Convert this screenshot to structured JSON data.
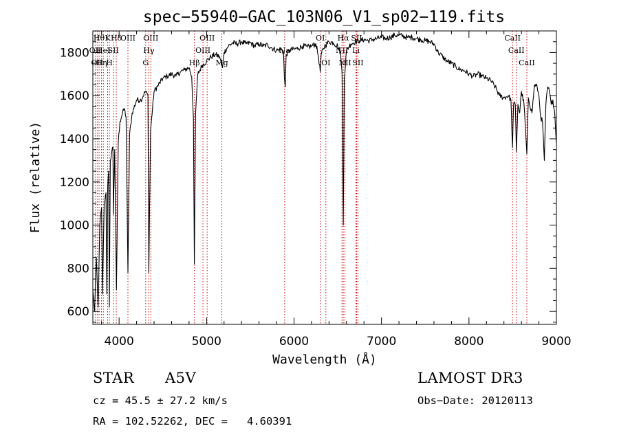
{
  "chart_data": {
    "type": "line",
    "title": "spec−55940−GAC_103N06_V1_sp02−119.fits",
    "xlabel": "Wavelength (Å)",
    "ylabel": "Flux (relative)",
    "xlim": [
      3700,
      9000
    ],
    "ylim": [
      540,
      1900
    ],
    "xticks": [
      4000,
      5000,
      6000,
      7000,
      8000,
      9000
    ],
    "yticks": [
      600,
      800,
      1000,
      1200,
      1400,
      1600,
      1800
    ],
    "line_color": "#cc0000",
    "trace_color": "#000000",
    "series": [
      {
        "name": "flux",
        "points": [
          [
            3700,
            700
          ],
          [
            3720,
            600
          ],
          [
            3740,
            850
          ],
          [
            3760,
            620
          ],
          [
            3780,
            1000
          ],
          [
            3800,
            1080
          ],
          [
            3810,
            680
          ],
          [
            3830,
            1100
          ],
          [
            3850,
            1150
          ],
          [
            3860,
            680
          ],
          [
            3870,
            1180
          ],
          [
            3880,
            1250
          ],
          [
            3889,
            620
          ],
          [
            3900,
            1300
          ],
          [
            3920,
            1350
          ],
          [
            3930,
            1360
          ],
          [
            3934,
            1050
          ],
          [
            3950,
            1350
          ],
          [
            3970,
            700
          ],
          [
            3990,
            1380
          ],
          [
            4010,
            1480
          ],
          [
            4040,
            1520
          ],
          [
            4060,
            1540
          ],
          [
            4080,
            1500
          ],
          [
            4101,
            780
          ],
          [
            4120,
            1420
          ],
          [
            4150,
            1520
          ],
          [
            4200,
            1580
          ],
          [
            4250,
            1580
          ],
          [
            4300,
            1620
          ],
          [
            4330,
            1600
          ],
          [
            4340,
            780
          ],
          [
            4360,
            1440
          ],
          [
            4400,
            1620
          ],
          [
            4450,
            1650
          ],
          [
            4500,
            1680
          ],
          [
            4550,
            1690
          ],
          [
            4600,
            1700
          ],
          [
            4650,
            1690
          ],
          [
            4700,
            1710
          ],
          [
            4750,
            1720
          ],
          [
            4800,
            1730
          ],
          [
            4830,
            1690
          ],
          [
            4850,
            1500
          ],
          [
            4861,
            820
          ],
          [
            4875,
            1520
          ],
          [
            4900,
            1700
          ],
          [
            4950,
            1740
          ],
          [
            5000,
            1760
          ],
          [
            5050,
            1780
          ],
          [
            5100,
            1790
          ],
          [
            5150,
            1780
          ],
          [
            5172,
            1740
          ],
          [
            5183,
            1730
          ],
          [
            5200,
            1800
          ],
          [
            5250,
            1830
          ],
          [
            5300,
            1845
          ],
          [
            5350,
            1840
          ],
          [
            5400,
            1850
          ],
          [
            5450,
            1840
          ],
          [
            5500,
            1845
          ],
          [
            5550,
            1830
          ],
          [
            5600,
            1840
          ],
          [
            5650,
            1830
          ],
          [
            5700,
            1835
          ],
          [
            5750,
            1820
          ],
          [
            5800,
            1810
          ],
          [
            5850,
            1815
          ],
          [
            5880,
            1800
          ],
          [
            5890,
            1680
          ],
          [
            5900,
            1640
          ],
          [
            5910,
            1790
          ],
          [
            5950,
            1810
          ],
          [
            6000,
            1815
          ],
          [
            6050,
            1820
          ],
          [
            6100,
            1830
          ],
          [
            6150,
            1825
          ],
          [
            6200,
            1830
          ],
          [
            6250,
            1840
          ],
          [
            6280,
            1780
          ],
          [
            6300,
            1710
          ],
          [
            6310,
            1790
          ],
          [
            6350,
            1830
          ],
          [
            6400,
            1850
          ],
          [
            6450,
            1845
          ],
          [
            6500,
            1830
          ],
          [
            6530,
            1800
          ],
          [
            6550,
            1700
          ],
          [
            6563,
            1000
          ],
          [
            6575,
            1680
          ],
          [
            6600,
            1810
          ],
          [
            6650,
            1840
          ],
          [
            6700,
            1850
          ],
          [
            6750,
            1855
          ],
          [
            6800,
            1860
          ],
          [
            6850,
            1855
          ],
          [
            6900,
            1860
          ],
          [
            6950,
            1865
          ],
          [
            7000,
            1870
          ],
          [
            7050,
            1865
          ],
          [
            7100,
            1870
          ],
          [
            7150,
            1880
          ],
          [
            7200,
            1880
          ],
          [
            7250,
            1875
          ],
          [
            7300,
            1870
          ],
          [
            7350,
            1870
          ],
          [
            7400,
            1865
          ],
          [
            7450,
            1860
          ],
          [
            7500,
            1855
          ],
          [
            7550,
            1850
          ],
          [
            7600,
            1840
          ],
          [
            7650,
            1800
          ],
          [
            7700,
            1780
          ],
          [
            7750,
            1760
          ],
          [
            7800,
            1750
          ],
          [
            7850,
            1735
          ],
          [
            7900,
            1720
          ],
          [
            7950,
            1715
          ],
          [
            8000,
            1700
          ],
          [
            8050,
            1690
          ],
          [
            8100,
            1700
          ],
          [
            8150,
            1690
          ],
          [
            8200,
            1680
          ],
          [
            8250,
            1670
          ],
          [
            8300,
            1640
          ],
          [
            8350,
            1600
          ],
          [
            8400,
            1590
          ],
          [
            8450,
            1600
          ],
          [
            8480,
            1580
          ],
          [
            8498,
            1360
          ],
          [
            8510,
            1560
          ],
          [
            8530,
            1560
          ],
          [
            8542,
            1340
          ],
          [
            8560,
            1560
          ],
          [
            8580,
            1520
          ],
          [
            8600,
            1620
          ],
          [
            8630,
            1560
          ],
          [
            8662,
            1330
          ],
          [
            8680,
            1590
          ],
          [
            8720,
            1520
          ],
          [
            8750,
            1650
          ],
          [
            8780,
            1640
          ],
          [
            8800,
            1600
          ],
          [
            8820,
            1500
          ],
          [
            8840,
            1480
          ],
          [
            8862,
            1300
          ],
          [
            8880,
            1560
          ],
          [
            8900,
            1640
          ],
          [
            8920,
            1620
          ],
          [
            8940,
            1560
          ],
          [
            8960,
            1580
          ],
          [
            8980,
            1520
          ],
          [
            9000,
            1380
          ]
        ]
      }
    ],
    "spectral_lines": [
      {
        "x": 3727,
        "row": 1,
        "label": "OII"
      },
      {
        "x": 3750,
        "row": 2,
        "label": "OII"
      },
      {
        "x": 3771,
        "row": 0,
        "label": "Hθ"
      },
      {
        "x": 3798,
        "row": 2,
        "label": "Hη"
      },
      {
        "x": 3820,
        "row": 1,
        "label": "HeI"
      },
      {
        "x": 3869,
        "row": 0,
        "label": "K"
      },
      {
        "x": 3889,
        "row": 2,
        "label": "H"
      },
      {
        "x": 3934,
        "row": 1,
        "label": "SII"
      },
      {
        "x": 3968,
        "row": 0,
        "label": "Hδ"
      },
      {
        "x": 4101,
        "row": 0,
        "label": "OIII"
      },
      {
        "x": 4304,
        "row": 2,
        "label": "G"
      },
      {
        "x": 4340,
        "row": 1,
        "label": "Hγ"
      },
      {
        "x": 4363,
        "row": 0,
        "label": "OIII"
      },
      {
        "x": 4861,
        "row": 2,
        "label": "Hβ"
      },
      {
        "x": 4959,
        "row": 1,
        "label": "OIII"
      },
      {
        "x": 5007,
        "row": 0,
        "label": "OIII"
      },
      {
        "x": 5175,
        "row": 2,
        "label": "Mg"
      },
      {
        "x": 5893,
        "row": 1,
        "label": "Na"
      },
      {
        "x": 6300,
        "row": 0,
        "label": "OI"
      },
      {
        "x": 6364,
        "row": 2,
        "label": "OI"
      },
      {
        "x": 6548,
        "row": 1,
        "label": "NII"
      },
      {
        "x": 6563,
        "row": 0,
        "label": "Hα"
      },
      {
        "x": 6583,
        "row": 2,
        "label": "NII"
      },
      {
        "x": 6708,
        "row": 1,
        "label": "Li"
      },
      {
        "x": 6716,
        "row": 0,
        "label": "SII"
      },
      {
        "x": 6731,
        "row": 2,
        "label": "SII"
      },
      {
        "x": 8498,
        "row": 0,
        "label": "CaII"
      },
      {
        "x": 8542,
        "row": 1,
        "label": "CaII"
      },
      {
        "x": 8662,
        "row": 2,
        "label": "CaII"
      }
    ]
  },
  "info": {
    "object_class": "STAR",
    "subclass": "A5V",
    "survey": "LAMOST DR3",
    "cz": "cz = 45.5 ± 27.2 km/s",
    "obs_date": "Obs−Date: 20120113",
    "radec": "RA = 102.52262, DEC =   4.60391"
  }
}
